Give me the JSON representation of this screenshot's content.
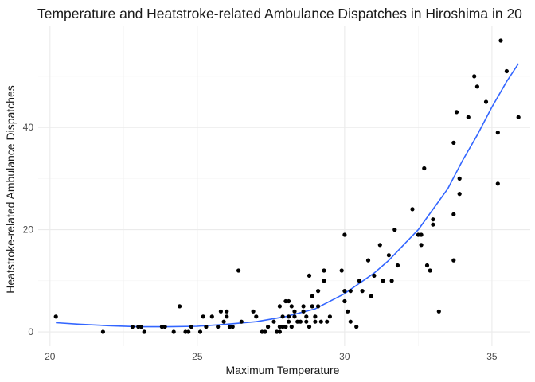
{
  "chart_data": {
    "type": "scatter",
    "title": "Temperature and Heatstroke-related Ambulance Dispatches in Hiroshima in 20",
    "xlabel": "Maximum Temperature",
    "ylabel": "Heatstroke-related Ambulance Dispatches",
    "xlim": [
      19.6,
      36.3
    ],
    "ylim": [
      -2.8,
      59.8
    ],
    "x_ticks": [
      20,
      25,
      30,
      35
    ],
    "y_ticks": [
      0,
      20,
      40
    ],
    "grid": true,
    "legend": "none",
    "colors": {
      "points": "#000000",
      "trend": "#3366ff"
    },
    "points": [
      {
        "x": 20.2,
        "y": 3
      },
      {
        "x": 21.8,
        "y": 0
      },
      {
        "x": 22.8,
        "y": 1
      },
      {
        "x": 23.0,
        "y": 1
      },
      {
        "x": 23.1,
        "y": 1
      },
      {
        "x": 23.2,
        "y": 0
      },
      {
        "x": 23.8,
        "y": 1
      },
      {
        "x": 23.9,
        "y": 1
      },
      {
        "x": 24.2,
        "y": 0
      },
      {
        "x": 24.4,
        "y": 5
      },
      {
        "x": 24.6,
        "y": 0
      },
      {
        "x": 24.7,
        "y": 0
      },
      {
        "x": 24.8,
        "y": 1
      },
      {
        "x": 25.1,
        "y": 0
      },
      {
        "x": 25.2,
        "y": 3
      },
      {
        "x": 25.3,
        "y": 1
      },
      {
        "x": 25.5,
        "y": 3
      },
      {
        "x": 25.7,
        "y": 1
      },
      {
        "x": 25.8,
        "y": 4
      },
      {
        "x": 25.9,
        "y": 2
      },
      {
        "x": 26.0,
        "y": 4
      },
      {
        "x": 26.0,
        "y": 3
      },
      {
        "x": 26.1,
        "y": 1
      },
      {
        "x": 26.2,
        "y": 1
      },
      {
        "x": 26.4,
        "y": 12
      },
      {
        "x": 26.5,
        "y": 2
      },
      {
        "x": 26.9,
        "y": 4
      },
      {
        "x": 27.0,
        "y": 3
      },
      {
        "x": 27.2,
        "y": 0
      },
      {
        "x": 27.3,
        "y": 0
      },
      {
        "x": 27.4,
        "y": 1
      },
      {
        "x": 27.6,
        "y": 2
      },
      {
        "x": 27.7,
        "y": 0
      },
      {
        "x": 27.8,
        "y": 0
      },
      {
        "x": 27.8,
        "y": 1
      },
      {
        "x": 27.8,
        "y": 5
      },
      {
        "x": 27.9,
        "y": 3
      },
      {
        "x": 27.9,
        "y": 1
      },
      {
        "x": 28.0,
        "y": 1
      },
      {
        "x": 28.0,
        "y": 6
      },
      {
        "x": 28.1,
        "y": 6
      },
      {
        "x": 28.1,
        "y": 2
      },
      {
        "x": 28.1,
        "y": 3
      },
      {
        "x": 28.2,
        "y": 5
      },
      {
        "x": 28.2,
        "y": 1
      },
      {
        "x": 28.3,
        "y": 3
      },
      {
        "x": 28.3,
        "y": 4
      },
      {
        "x": 28.4,
        "y": 2
      },
      {
        "x": 28.5,
        "y": 2
      },
      {
        "x": 28.6,
        "y": 5
      },
      {
        "x": 28.6,
        "y": 4
      },
      {
        "x": 28.7,
        "y": 2
      },
      {
        "x": 28.7,
        "y": 3
      },
      {
        "x": 28.8,
        "y": 1
      },
      {
        "x": 28.8,
        "y": 11
      },
      {
        "x": 28.9,
        "y": 7
      },
      {
        "x": 28.9,
        "y": 5
      },
      {
        "x": 29.0,
        "y": 3
      },
      {
        "x": 29.0,
        "y": 2
      },
      {
        "x": 29.1,
        "y": 8
      },
      {
        "x": 29.1,
        "y": 5
      },
      {
        "x": 29.2,
        "y": 2
      },
      {
        "x": 29.3,
        "y": 10
      },
      {
        "x": 29.3,
        "y": 12
      },
      {
        "x": 29.4,
        "y": 2
      },
      {
        "x": 29.5,
        "y": 3
      },
      {
        "x": 29.9,
        "y": 12
      },
      {
        "x": 30.0,
        "y": 6
      },
      {
        "x": 30.0,
        "y": 8
      },
      {
        "x": 30.0,
        "y": 19
      },
      {
        "x": 30.1,
        "y": 4
      },
      {
        "x": 30.2,
        "y": 2
      },
      {
        "x": 30.2,
        "y": 8
      },
      {
        "x": 30.4,
        "y": 1
      },
      {
        "x": 30.5,
        "y": 10
      },
      {
        "x": 30.6,
        "y": 8
      },
      {
        "x": 30.8,
        "y": 14
      },
      {
        "x": 30.9,
        "y": 7
      },
      {
        "x": 31.0,
        "y": 11
      },
      {
        "x": 31.2,
        "y": 17
      },
      {
        "x": 31.3,
        "y": 10
      },
      {
        "x": 31.5,
        "y": 15
      },
      {
        "x": 31.6,
        "y": 10
      },
      {
        "x": 31.7,
        "y": 20
      },
      {
        "x": 31.8,
        "y": 13
      },
      {
        "x": 32.3,
        "y": 24
      },
      {
        "x": 32.5,
        "y": 19
      },
      {
        "x": 32.6,
        "y": 17
      },
      {
        "x": 32.6,
        "y": 19
      },
      {
        "x": 32.7,
        "y": 32
      },
      {
        "x": 32.8,
        "y": 13
      },
      {
        "x": 32.9,
        "y": 12
      },
      {
        "x": 33.0,
        "y": 22
      },
      {
        "x": 33.0,
        "y": 21
      },
      {
        "x": 33.2,
        "y": 4
      },
      {
        "x": 33.7,
        "y": 37
      },
      {
        "x": 33.7,
        "y": 23
      },
      {
        "x": 33.7,
        "y": 14
      },
      {
        "x": 33.8,
        "y": 43
      },
      {
        "x": 33.9,
        "y": 30
      },
      {
        "x": 33.9,
        "y": 27
      },
      {
        "x": 34.2,
        "y": 42
      },
      {
        "x": 34.4,
        "y": 50
      },
      {
        "x": 34.5,
        "y": 48
      },
      {
        "x": 34.8,
        "y": 45
      },
      {
        "x": 35.2,
        "y": 39
      },
      {
        "x": 35.2,
        "y": 29
      },
      {
        "x": 35.3,
        "y": 57
      },
      {
        "x": 35.5,
        "y": 51
      },
      {
        "x": 35.9,
        "y": 42
      }
    ],
    "trend": {
      "x": [
        20.2,
        21,
        22,
        23,
        24,
        25,
        26,
        27,
        28,
        29,
        30,
        30.5,
        31,
        31.5,
        32,
        32.5,
        33,
        33.5,
        34,
        34.5,
        35,
        35.5,
        35.9
      ],
      "y": [
        1.8,
        1.5,
        1.2,
        1.0,
        1.0,
        1.1,
        1.5,
        2.0,
        3.0,
        4.5,
        7.5,
        9.5,
        11.5,
        14.0,
        17.0,
        20.0,
        24.0,
        28.0,
        33.5,
        38.5,
        44.0,
        49.0,
        52.5
      ]
    }
  }
}
